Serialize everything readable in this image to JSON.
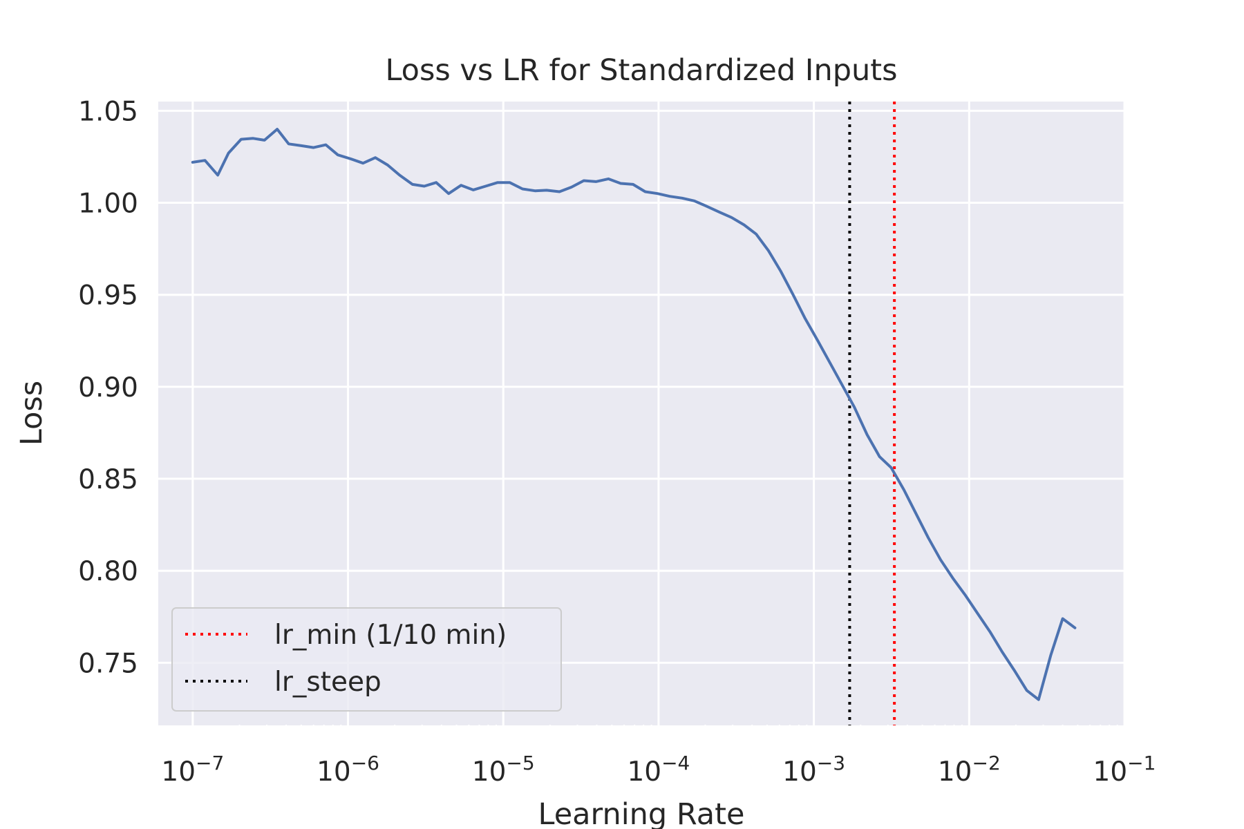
{
  "chart_data": {
    "type": "line",
    "title": "Loss vs LR for Standardized Inputs",
    "xlabel": "Learning Rate",
    "ylabel": "Loss",
    "xscale": "log",
    "xlim": [
      6e-08,
      0.1
    ],
    "ylim": [
      0.716,
      1.055
    ],
    "grid": true,
    "legend_position": "lower-left",
    "x_ticks": [
      {
        "value": 1e-07,
        "base": "10",
        "exp": "−7"
      },
      {
        "value": 1e-06,
        "base": "10",
        "exp": "−6"
      },
      {
        "value": 1e-05,
        "base": "10",
        "exp": "−5"
      },
      {
        "value": 0.0001,
        "base": "10",
        "exp": "−4"
      },
      {
        "value": 0.001,
        "base": "10",
        "exp": "−3"
      },
      {
        "value": 0.01,
        "base": "10",
        "exp": "−2"
      },
      {
        "value": 0.1,
        "base": "10",
        "exp": "−1"
      }
    ],
    "y_ticks": [
      {
        "value": 0.75,
        "label": "0.75"
      },
      {
        "value": 0.8,
        "label": "0.80"
      },
      {
        "value": 0.85,
        "label": "0.85"
      },
      {
        "value": 0.9,
        "label": "0.90"
      },
      {
        "value": 0.95,
        "label": "0.95"
      },
      {
        "value": 1.0,
        "label": "1.00"
      },
      {
        "value": 1.05,
        "label": "1.05"
      }
    ],
    "series": [
      {
        "color": "#4c72b0",
        "points": [
          [
            1e-07,
            1.022
          ],
          [
            1.2e-07,
            1.023
          ],
          [
            1.45e-07,
            1.015
          ],
          [
            1.7e-07,
            1.027
          ],
          [
            2.05e-07,
            1.0345
          ],
          [
            2.45e-07,
            1.035
          ],
          [
            2.9e-07,
            1.034
          ],
          [
            3.5e-07,
            1.04
          ],
          [
            4.15e-07,
            1.032
          ],
          [
            5e-07,
            1.031
          ],
          [
            6e-07,
            1.03
          ],
          [
            7.2e-07,
            1.0315
          ],
          [
            8.6e-07,
            1.026
          ],
          [
            1.03e-06,
            1.024
          ],
          [
            1.25e-06,
            1.0215
          ],
          [
            1.5e-06,
            1.0245
          ],
          [
            1.8e-06,
            1.0205
          ],
          [
            2.15e-06,
            1.015
          ],
          [
            2.6e-06,
            1.01
          ],
          [
            3.1e-06,
            1.009
          ],
          [
            3.7e-06,
            1.011
          ],
          [
            4.45e-06,
            1.005
          ],
          [
            5.35e-06,
            1.0095
          ],
          [
            6.4e-06,
            1.007
          ],
          [
            7.7e-06,
            1.009
          ],
          [
            9.2e-06,
            1.011
          ],
          [
            1.1e-05,
            1.011
          ],
          [
            1.33e-05,
            1.0075
          ],
          [
            1.6e-05,
            1.0065
          ],
          [
            1.9e-05,
            1.0068
          ],
          [
            2.3e-05,
            1.006
          ],
          [
            2.75e-05,
            1.0085
          ],
          [
            3.3e-05,
            1.012
          ],
          [
            3.95e-05,
            1.0115
          ],
          [
            4.75e-05,
            1.013
          ],
          [
            5.7e-05,
            1.0105
          ],
          [
            6.85e-05,
            1.01
          ],
          [
            8.2e-05,
            1.006
          ],
          [
            9.85e-05,
            1.005
          ],
          [
            0.000118,
            1.0035
          ],
          [
            0.000142,
            1.0025
          ],
          [
            0.00017,
            1.001
          ],
          [
            0.000205,
            0.998
          ],
          [
            0.000245,
            0.995
          ],
          [
            0.000295,
            0.992
          ],
          [
            0.000355,
            0.988
          ],
          [
            0.000425,
            0.983
          ],
          [
            0.00051,
            0.974
          ],
          [
            0.00061,
            0.963
          ],
          [
            0.000735,
            0.95
          ],
          [
            0.00088,
            0.937
          ],
          [
            0.00106,
            0.925
          ],
          [
            0.00127,
            0.913
          ],
          [
            0.00152,
            0.901
          ],
          [
            0.00182,
            0.889
          ],
          [
            0.0022,
            0.874
          ],
          [
            0.00265,
            0.862
          ],
          [
            0.00315,
            0.856
          ],
          [
            0.0038,
            0.844
          ],
          [
            0.00455,
            0.831
          ],
          [
            0.00545,
            0.818
          ],
          [
            0.00655,
            0.806
          ],
          [
            0.00785,
            0.796
          ],
          [
            0.0094,
            0.787
          ],
          [
            0.0113,
            0.777
          ],
          [
            0.0136,
            0.767
          ],
          [
            0.0163,
            0.756
          ],
          [
            0.0195,
            0.746
          ],
          [
            0.0235,
            0.735
          ],
          [
            0.028,
            0.73
          ],
          [
            0.0335,
            0.754
          ],
          [
            0.04,
            0.774
          ],
          [
            0.048,
            0.769
          ]
        ]
      }
    ],
    "vlines": [
      {
        "key": "lr-min",
        "x": 0.0033,
        "color": "#ff0000",
        "style": "dotted"
      },
      {
        "key": "lr-steep",
        "x": 0.0017,
        "color": "#000000",
        "style": "dotted"
      }
    ],
    "legend": [
      {
        "label": "lr_min (1/10 min)",
        "color": "#ff0000",
        "style": "dotted"
      },
      {
        "label": "lr_steep",
        "color": "#000000",
        "style": "dotted"
      }
    ],
    "colors": {
      "plot_background": "#eaeaf2",
      "grid": "#ffffff",
      "text": "#262626"
    }
  }
}
